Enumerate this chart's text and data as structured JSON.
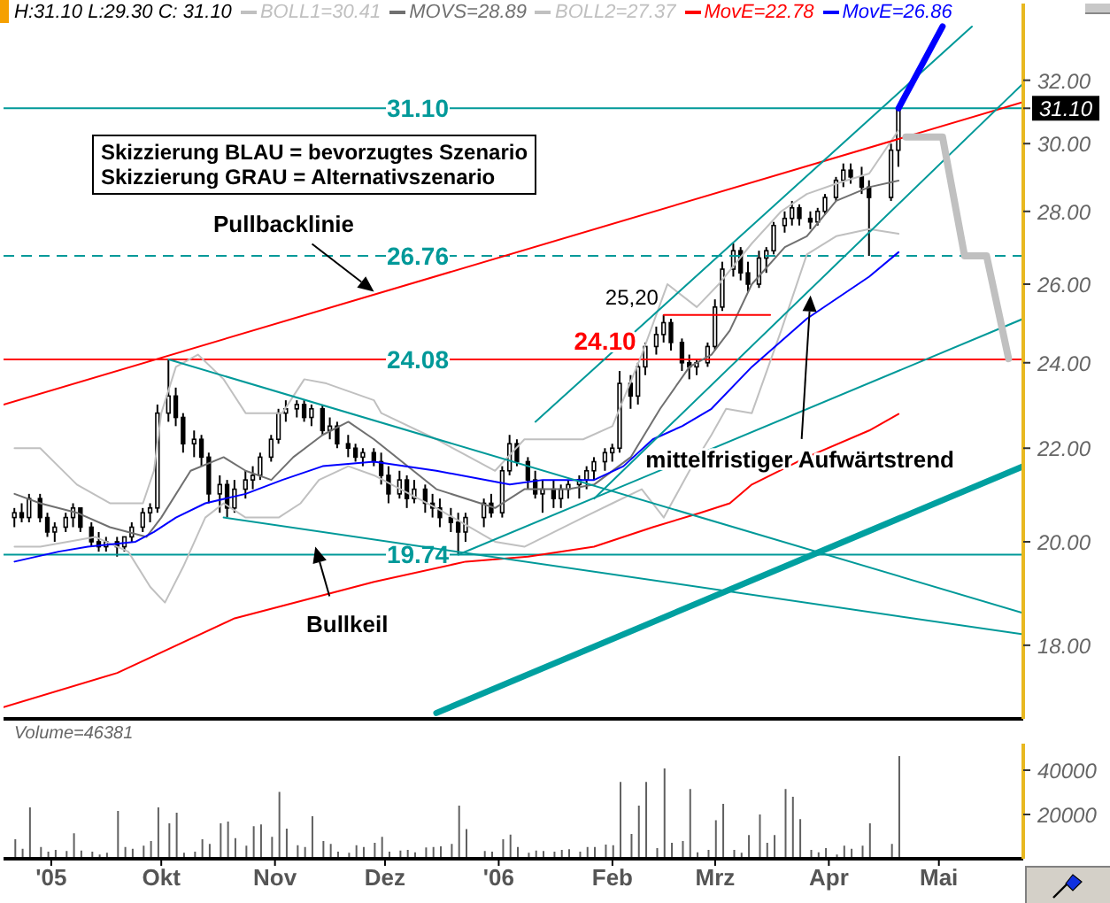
{
  "chart_data": [
    {
      "type": "candlestick",
      "title": "H:31.10 L:29.30 C: 31.10",
      "color": "#000000",
      "x": [
        "2005-08-22",
        "2005-08-24",
        "2005-08-26",
        "2005-08-29",
        "2005-08-31",
        "2005-09-02",
        "2005-09-05",
        "2005-09-07",
        "2005-09-09",
        "2005-09-12",
        "2005-09-14",
        "2005-09-16",
        "2005-09-19",
        "2005-09-21",
        "2005-09-23",
        "2005-09-26",
        "2005-09-28",
        "2005-09-30",
        "2005-10-03",
        "2005-10-05",
        "2005-10-07",
        "2005-10-10",
        "2005-10-12",
        "2005-10-14",
        "2005-10-17",
        "2005-10-19",
        "2005-10-21",
        "2005-10-24",
        "2005-10-26",
        "2005-10-28",
        "2005-10-31",
        "2005-11-02",
        "2005-11-04",
        "2005-11-07",
        "2005-11-09",
        "2005-11-11",
        "2005-11-14",
        "2005-11-16",
        "2005-11-18",
        "2005-11-21",
        "2005-11-23",
        "2005-11-25",
        "2005-11-28",
        "2005-11-30",
        "2005-12-02",
        "2005-12-05",
        "2005-12-07",
        "2005-12-09",
        "2005-12-12",
        "2005-12-14",
        "2005-12-16",
        "2005-12-19",
        "2005-12-21",
        "2005-12-23",
        "2005-12-28",
        "2005-12-30",
        "2006-01-02",
        "2006-01-04",
        "2006-01-06",
        "2006-01-09",
        "2006-01-11",
        "2006-01-13",
        "2006-01-16",
        "2006-01-18",
        "2006-01-20",
        "2006-01-23",
        "2006-01-25",
        "2006-01-27",
        "2006-01-30",
        "2006-02-01",
        "2006-02-03",
        "2006-02-06",
        "2006-02-08",
        "2006-02-10",
        "2006-02-13",
        "2006-02-15",
        "2006-02-17",
        "2006-02-20",
        "2006-02-22",
        "2006-02-24",
        "2006-02-27",
        "2006-03-01",
        "2006-03-03",
        "2006-03-06",
        "2006-03-08",
        "2006-03-10",
        "2006-03-13",
        "2006-03-15",
        "2006-03-17",
        "2006-03-20",
        "2006-03-22",
        "2006-03-24",
        "2006-03-27",
        "2006-03-29",
        "2006-03-31",
        "2006-04-03",
        "2006-04-05",
        "2006-04-07",
        "2006-04-10",
        "2006-04-12",
        "2006-04-18",
        "2006-04-20"
      ],
      "ohlc": [
        [
          20.5,
          20.7,
          20.3,
          20.6
        ],
        [
          20.6,
          20.8,
          20.4,
          20.5
        ],
        [
          20.5,
          21.0,
          20.4,
          20.9
        ],
        [
          20.9,
          21.0,
          20.4,
          20.5
        ],
        [
          20.5,
          20.6,
          20.1,
          20.2
        ],
        [
          20.2,
          20.4,
          20.0,
          20.3
        ],
        [
          20.3,
          20.6,
          20.2,
          20.5
        ],
        [
          20.5,
          20.8,
          20.3,
          20.7
        ],
        [
          20.7,
          20.7,
          20.2,
          20.3
        ],
        [
          20.3,
          20.4,
          19.9,
          20.0
        ],
        [
          20.0,
          20.2,
          19.8,
          19.9
        ],
        [
          19.9,
          20.1,
          19.8,
          20.0
        ],
        [
          20.0,
          20.1,
          19.7,
          19.9
        ],
        [
          19.9,
          20.1,
          19.8,
          20.1
        ],
        [
          20.1,
          20.4,
          20.0,
          20.3
        ],
        [
          20.3,
          20.7,
          20.2,
          20.6
        ],
        [
          20.6,
          20.8,
          20.4,
          20.7
        ],
        [
          20.7,
          23.0,
          20.6,
          22.8
        ],
        [
          22.8,
          24.08,
          22.6,
          23.2
        ],
        [
          23.2,
          23.4,
          22.5,
          22.7
        ],
        [
          22.7,
          22.8,
          21.9,
          22.1
        ],
        [
          22.1,
          22.4,
          21.8,
          22.2
        ],
        [
          22.2,
          22.3,
          21.6,
          21.8
        ],
        [
          21.8,
          21.9,
          20.8,
          21.0
        ],
        [
          21.0,
          21.4,
          20.6,
          21.2
        ],
        [
          21.2,
          21.3,
          20.5,
          20.7
        ],
        [
          20.7,
          21.3,
          20.6,
          21.1
        ],
        [
          21.1,
          21.5,
          20.9,
          21.3
        ],
        [
          21.3,
          21.6,
          21.1,
          21.4
        ],
        [
          21.4,
          21.9,
          21.3,
          21.8
        ],
        [
          21.8,
          22.3,
          21.7,
          22.2
        ],
        [
          22.2,
          22.9,
          22.1,
          22.8
        ],
        [
          22.8,
          23.1,
          22.6,
          22.9
        ],
        [
          22.9,
          23.1,
          22.7,
          23.0
        ],
        [
          23.0,
          23.1,
          22.6,
          22.7
        ],
        [
          22.7,
          23.0,
          22.5,
          22.9
        ],
        [
          22.9,
          23.0,
          22.3,
          22.4
        ],
        [
          22.4,
          22.7,
          22.2,
          22.5
        ],
        [
          22.5,
          22.6,
          22.0,
          22.1
        ],
        [
          22.1,
          22.3,
          21.8,
          22.0
        ],
        [
          22.0,
          22.1,
          21.7,
          21.8
        ],
        [
          21.8,
          22.0,
          21.6,
          21.9
        ],
        [
          21.9,
          22.0,
          21.6,
          21.7
        ],
        [
          21.7,
          21.9,
          21.2,
          21.4
        ],
        [
          21.4,
          21.6,
          20.8,
          21.0
        ],
        [
          21.0,
          21.5,
          20.9,
          21.3
        ],
        [
          21.3,
          21.4,
          20.7,
          20.9
        ],
        [
          20.9,
          21.3,
          20.8,
          21.1
        ],
        [
          21.1,
          21.2,
          20.6,
          20.8
        ],
        [
          20.8,
          21.0,
          20.5,
          20.7
        ],
        [
          20.7,
          20.9,
          20.3,
          20.5
        ],
        [
          20.5,
          20.7,
          20.2,
          20.4
        ],
        [
          20.4,
          20.6,
          19.74,
          20.2
        ],
        [
          20.2,
          20.6,
          20.0,
          20.5
        ],
        [
          20.5,
          20.9,
          20.3,
          20.8
        ],
        [
          20.8,
          21.0,
          20.5,
          20.6
        ],
        [
          20.6,
          21.6,
          20.5,
          21.5
        ],
        [
          21.5,
          22.3,
          21.4,
          22.1
        ],
        [
          22.1,
          22.2,
          21.6,
          21.7
        ],
        [
          21.7,
          21.8,
          21.1,
          21.3
        ],
        [
          21.3,
          21.5,
          20.9,
          21.0
        ],
        [
          21.0,
          21.3,
          20.6,
          21.1
        ],
        [
          21.1,
          21.3,
          20.7,
          20.9
        ],
        [
          20.9,
          21.2,
          20.7,
          21.1
        ],
        [
          21.1,
          21.3,
          20.9,
          21.2
        ],
        [
          21.2,
          21.4,
          20.9,
          21.3
        ],
        [
          21.3,
          21.6,
          21.1,
          21.5
        ],
        [
          21.5,
          21.8,
          21.3,
          21.7
        ],
        [
          21.7,
          22.0,
          21.5,
          21.9
        ],
        [
          21.9,
          22.1,
          21.7,
          22.0
        ],
        [
          22.0,
          23.8,
          21.9,
          23.5
        ],
        [
          23.5,
          23.7,
          22.9,
          23.2
        ],
        [
          23.2,
          24.0,
          23.0,
          23.9
        ],
        [
          23.9,
          24.5,
          23.7,
          24.4
        ],
        [
          24.4,
          24.9,
          24.2,
          24.7
        ],
        [
          24.7,
          25.2,
          24.5,
          25.0
        ],
        [
          25.0,
          25.1,
          24.3,
          24.5
        ],
        [
          24.5,
          24.6,
          23.8,
          24.0
        ],
        [
          24.0,
          24.2,
          23.6,
          23.9
        ],
        [
          23.9,
          24.1,
          23.7,
          24.0
        ],
        [
          24.0,
          24.5,
          23.9,
          24.4
        ],
        [
          24.4,
          25.6,
          24.3,
          25.4
        ],
        [
          25.4,
          26.6,
          25.3,
          26.4
        ],
        [
          26.4,
          27.1,
          26.2,
          26.9
        ],
        [
          26.9,
          27.0,
          26.1,
          26.3
        ],
        [
          26.3,
          26.6,
          25.8,
          26.0
        ],
        [
          26.0,
          26.9,
          25.9,
          26.7
        ],
        [
          26.7,
          27.0,
          26.3,
          26.9
        ],
        [
          26.9,
          27.7,
          26.8,
          27.6
        ],
        [
          27.6,
          28.0,
          27.4,
          27.8
        ],
        [
          27.8,
          28.3,
          27.6,
          28.1
        ],
        [
          28.1,
          28.2,
          27.6,
          27.8
        ],
        [
          27.8,
          28.0,
          27.5,
          27.7
        ],
        [
          27.7,
          28.1,
          27.6,
          28.0
        ],
        [
          28.0,
          28.5,
          27.9,
          28.4
        ],
        [
          28.4,
          29.0,
          28.3,
          28.9
        ],
        [
          28.9,
          29.4,
          28.7,
          29.2
        ],
        [
          29.2,
          29.4,
          28.8,
          29.0
        ],
        [
          29.0,
          29.3,
          28.5,
          28.7
        ],
        [
          28.7,
          28.9,
          26.76,
          28.4
        ],
        [
          28.4,
          30.0,
          28.3,
          29.8
        ],
        [
          29.8,
          31.1,
          29.3,
          31.1
        ]
      ],
      "series": [
        {
          "name": "BOLL1=30.41",
          "type": "line",
          "color": "#c0c0c0",
          "x": [
            "2005-08-22",
            "2005-08-29",
            "2005-09-08",
            "2005-09-17",
            "2005-09-26",
            "2005-09-29",
            "2005-10-01",
            "2005-10-05",
            "2005-10-11",
            "2005-10-18",
            "2005-10-24",
            "2005-11-03",
            "2005-11-09",
            "2005-11-15",
            "2005-11-28",
            "2005-11-30",
            "2005-12-15",
            "2005-12-31",
            "2006-01-08",
            "2006-01-24",
            "2006-02-01",
            "2006-02-09",
            "2006-02-16",
            "2006-02-24",
            "2006-03-02",
            "2006-03-11",
            "2006-03-19",
            "2006-03-26",
            "2006-04-03",
            "2006-04-12",
            "2006-04-20"
          ],
          "values": [
            22.0,
            22.0,
            21.2,
            20.8,
            20.8,
            21.5,
            22.8,
            23.9,
            24.2,
            23.6,
            22.8,
            22.8,
            23.6,
            23.5,
            23.1,
            22.8,
            22.2,
            21.5,
            22.2,
            22.2,
            22.5,
            24.2,
            26.0,
            25.4,
            26.0,
            27.1,
            28.0,
            28.5,
            28.8,
            29.1,
            30.41
          ]
        },
        {
          "name": "MOVS=28.89",
          "type": "line",
          "color": "#707070",
          "x": [
            "2005-08-22",
            "2005-08-29",
            "2005-09-08",
            "2005-09-17",
            "2005-09-27",
            "2005-10-01",
            "2005-10-09",
            "2005-10-18",
            "2005-10-24",
            "2005-10-31",
            "2005-11-06",
            "2005-11-14",
            "2005-11-21",
            "2005-11-28",
            "2005-12-15",
            "2005-12-31",
            "2006-01-08",
            "2006-01-20",
            "2006-01-27",
            "2006-02-06",
            "2006-02-14",
            "2006-02-22",
            "2006-02-28",
            "2006-03-05",
            "2006-03-11",
            "2006-03-20",
            "2006-03-26",
            "2006-04-03",
            "2006-04-12",
            "2006-04-20"
          ],
          "values": [
            21.0,
            20.8,
            20.6,
            20.3,
            20.1,
            20.5,
            21.5,
            21.8,
            21.5,
            21.3,
            21.8,
            22.3,
            22.6,
            22.2,
            21.1,
            20.7,
            21.1,
            21.1,
            21.2,
            21.8,
            22.9,
            23.9,
            24.2,
            24.8,
            26.0,
            27.0,
            27.3,
            28.3,
            28.7,
            28.89
          ]
        },
        {
          "name": "BOLL2=27.37",
          "type": "line",
          "color": "#c0c0c0",
          "x": [
            "2005-08-22",
            "2005-08-29",
            "2005-09-13",
            "2005-09-22",
            "2005-09-28",
            "2005-10-02",
            "2005-10-07",
            "2005-10-13",
            "2005-10-18",
            "2005-10-24",
            "2005-11-02",
            "2005-11-08",
            "2005-11-13",
            "2005-11-21",
            "2005-11-28",
            "2005-12-15",
            "2005-12-31",
            "2006-01-08",
            "2006-01-24",
            "2006-02-01",
            "2006-02-09",
            "2006-02-15",
            "2006-02-22",
            "2006-02-28",
            "2006-03-04",
            "2006-03-11",
            "2006-03-19",
            "2006-03-26",
            "2006-04-03",
            "2006-04-12",
            "2006-04-20"
          ],
          "values": [
            19.9,
            19.9,
            20.1,
            19.8,
            19.1,
            18.8,
            19.5,
            20.5,
            20.8,
            20.5,
            20.5,
            20.8,
            21.3,
            21.6,
            21.4,
            20.7,
            20.0,
            19.9,
            20.5,
            20.8,
            21.1,
            20.5,
            21.5,
            22.3,
            22.9,
            22.8,
            24.8,
            26.8,
            27.3,
            27.5,
            27.37
          ]
        },
        {
          "name": "MovE=22.78",
          "type": "line",
          "color": "#ff0000",
          "x": [
            "2005-08-19",
            "2005-09-19",
            "2005-10-21",
            "2005-11-28",
            "2005-12-23",
            "2006-01-09",
            "2006-01-27",
            "2006-02-12",
            "2006-02-25",
            "2006-03-05",
            "2006-03-11",
            "2006-03-26",
            "2006-04-12",
            "2006-04-20"
          ],
          "values": [
            16.9,
            17.5,
            18.5,
            19.2,
            19.6,
            19.7,
            19.9,
            20.3,
            20.6,
            20.8,
            21.2,
            21.8,
            22.4,
            22.78
          ]
        },
        {
          "name": "MovE=26.86",
          "type": "line",
          "color": "#0000ff",
          "x": [
            "2005-08-22",
            "2005-09-03",
            "2005-09-11",
            "2005-09-24",
            "2005-09-29",
            "2005-10-05",
            "2005-10-13",
            "2005-10-24",
            "2005-11-03",
            "2005-11-14",
            "2005-11-28",
            "2005-12-15",
            "2006-01-04",
            "2006-01-13",
            "2006-01-27",
            "2006-02-04",
            "2006-02-12",
            "2006-02-20",
            "2006-02-28",
            "2006-03-11",
            "2006-03-26",
            "2006-04-12",
            "2006-04-20"
          ],
          "values": [
            19.6,
            19.8,
            19.9,
            20.0,
            20.2,
            20.5,
            20.8,
            21.0,
            21.3,
            21.6,
            21.7,
            21.5,
            21.2,
            21.3,
            21.3,
            21.6,
            22.2,
            22.5,
            22.9,
            23.9,
            25.1,
            26.2,
            26.86
          ]
        },
        {
          "type": "line",
          "color": "#ff0000",
          "x": [
            "2005-08-19",
            "2006-05-24"
          ],
          "values": [
            23.0,
            31.3
          ]
        },
        {
          "type": "line",
          "color": "#009999",
          "x": [
            "2005-10-03",
            "2006-05-24"
          ],
          "values": [
            24.08,
            18.6
          ]
        },
        {
          "type": "line",
          "color": "#009999",
          "x": [
            "2005-10-18",
            "2006-05-24"
          ],
          "values": [
            20.5,
            18.2
          ]
        },
        {
          "type": "line",
          "color": "#009999",
          "x": [
            "2006-01-11",
            "2006-05-10"
          ],
          "values": [
            22.6,
            33.8
          ]
        },
        {
          "type": "line",
          "color": "#009999",
          "x": [
            "2006-01-27",
            "2006-05-24"
          ],
          "values": [
            20.9,
            31.9
          ]
        },
        {
          "type": "line",
          "color": "#009999",
          "x": [
            "2005-12-21",
            "2006-05-24"
          ],
          "values": [
            19.74,
            25.1
          ]
        },
        {
          "type": "line",
          "color": "#00a0a0",
          "x": [
            "2005-12-15",
            "2006-05-24"
          ],
          "values": [
            16.8,
            21.6
          ]
        },
        {
          "type": "line",
          "color": "#ff0000",
          "x": [
            "2006-02-15",
            "2006-03-16"
          ],
          "values": [
            25.2,
            25.2
          ]
        },
        {
          "type": "line",
          "color": "#0000ff",
          "x": [
            "2006-04-20",
            "2006-05-02"
          ],
          "values": [
            31.1,
            33.8
          ]
        },
        {
          "type": "line",
          "color": "#c0c0c0",
          "x": [
            "2006-04-22",
            "2006-05-02",
            "2006-05-08",
            "2006-05-14",
            "2006-05-20"
          ],
          "values": [
            30.2,
            30.2,
            26.76,
            26.76,
            24.1
          ]
        }
      ],
      "xlim": [
        "2005-08-19",
        "2006-05-24"
      ],
      "ylim": [
        16.7,
        34.6
      ],
      "yticks": [
        {
          "value": 18,
          "label": "18.00"
        },
        {
          "value": 20,
          "label": "20.00"
        },
        {
          "value": 22,
          "label": "22.00"
        },
        {
          "value": 24,
          "label": "24.00"
        },
        {
          "value": 26,
          "label": "26.00"
        },
        {
          "value": 28,
          "label": "28.00"
        },
        {
          "value": 30,
          "label": "30.00"
        },
        {
          "value": 32,
          "label": "32.00"
        },
        {
          "value": 31.1,
          "label": "31.10"
        }
      ],
      "log": "y",
      "tick_labels": "y",
      "legend": "top",
      "ref_lines": [
        {
          "axis": "y",
          "value": 31.1,
          "label": "31.10",
          "color": "#009999"
        },
        {
          "axis": "y",
          "value": 26.76,
          "label": "26.76",
          "color": "#009999",
          "line_style": "dashed"
        },
        {
          "axis": "y",
          "value": 24.08,
          "label": "24.08",
          "color": "#ff0000"
        },
        {
          "axis": "y",
          "value": 19.74,
          "label": "19.74",
          "color": "#009999"
        }
      ],
      "annotations": [
        "Skizzierung BLAU = bevorzugtes Szenario",
        "Skizzierung GRAU = Alternativszenario",
        {
          "text": "Pullbacklinie",
          "x": "2005-11-28",
          "y": 25.8
        },
        {
          "text": "Bullkeil",
          "x": "2005-11-12",
          "y": 19.9
        },
        {
          "text": "mittelfristiger Aufwärtstrend",
          "x": "2006-03-27",
          "y": 25.7
        },
        {
          "text": "25,20",
          "x": "2006-02-15",
          "y": 25.2
        },
        {
          "text": "24.10",
          "x": "2006-01-30",
          "y": 24.1
        }
      ]
    },
    {
      "type": "bar",
      "title": "Volume=46381",
      "color": "#606060",
      "x": [
        "2005-08-22",
        "2005-08-24",
        "2005-08-26",
        "2005-08-29",
        "2005-08-31",
        "2005-09-02",
        "2005-09-05",
        "2005-09-07",
        "2005-09-09",
        "2005-09-12",
        "2005-09-14",
        "2005-09-16",
        "2005-09-19",
        "2005-09-21",
        "2005-09-23",
        "2005-09-26",
        "2005-09-28",
        "2005-09-30",
        "2005-10-03",
        "2005-10-05",
        "2005-10-07",
        "2005-10-10",
        "2005-10-12",
        "2005-10-14",
        "2005-10-17",
        "2005-10-19",
        "2005-10-21",
        "2005-10-24",
        "2005-10-26",
        "2005-10-28",
        "2005-10-31",
        "2005-11-02",
        "2005-11-04",
        "2005-11-07",
        "2005-11-09",
        "2005-11-11",
        "2005-11-14",
        "2005-11-16",
        "2005-11-18",
        "2005-11-21",
        "2005-11-23",
        "2005-11-25",
        "2005-11-28",
        "2005-11-30",
        "2005-12-02",
        "2005-12-05",
        "2005-12-07",
        "2005-12-09",
        "2005-12-12",
        "2005-12-14",
        "2005-12-16",
        "2005-12-19",
        "2005-12-21",
        "2005-12-23",
        "2005-12-28",
        "2005-12-30",
        "2006-01-02",
        "2006-01-04",
        "2006-01-06",
        "2006-01-09",
        "2006-01-11",
        "2006-01-13",
        "2006-01-16",
        "2006-01-18",
        "2006-01-20",
        "2006-01-23",
        "2006-01-25",
        "2006-01-27",
        "2006-01-30",
        "2006-02-01",
        "2006-02-03",
        "2006-02-06",
        "2006-02-08",
        "2006-02-10",
        "2006-02-13",
        "2006-02-15",
        "2006-02-17",
        "2006-02-20",
        "2006-02-22",
        "2006-02-24",
        "2006-02-27",
        "2006-03-01",
        "2006-03-03",
        "2006-03-06",
        "2006-03-08",
        "2006-03-10",
        "2006-03-13",
        "2006-03-15",
        "2006-03-17",
        "2006-03-20",
        "2006-03-22",
        "2006-03-24",
        "2006-03-27",
        "2006-03-29",
        "2006-03-31",
        "2006-04-03",
        "2006-04-05",
        "2006-04-07",
        "2006-04-10",
        "2006-04-12",
        "2006-04-18",
        "2006-04-20"
      ],
      "values": [
        8800,
        4500,
        23200,
        5300,
        3200,
        4000,
        3500,
        11500,
        3700,
        3200,
        1900,
        2700,
        21600,
        5300,
        4500,
        5900,
        8000,
        23200,
        16000,
        20800,
        2700,
        3200,
        8800,
        6700,
        16000,
        16800,
        9300,
        5900,
        14700,
        15500,
        9900,
        30200,
        13600,
        6100,
        5300,
        19200,
        8000,
        6700,
        3200,
        2700,
        6100,
        5300,
        7200,
        9900,
        3200,
        3700,
        4000,
        2900,
        5100,
        5300,
        5600,
        6700,
        24000,
        13400,
        3500,
        3200,
        8800,
        10900,
        5300,
        2700,
        3700,
        3500,
        3200,
        4000,
        4300,
        3200,
        5300,
        5300,
        6400,
        6100,
        34700,
        11200,
        24000,
        34700,
        4800,
        40800,
        7200,
        8000,
        31500,
        2900,
        4000,
        17400,
        24800,
        4000,
        2700,
        10700,
        20000,
        7200,
        10700,
        31500,
        28000,
        17900,
        4000,
        2900,
        4800,
        1900,
        5900,
        4500,
        5900,
        16000,
        6700,
        46381
      ],
      "xlim": [
        "2005-08-19",
        "2006-05-24"
      ],
      "xticks": [
        {
          "value": "2005-09-01",
          "label": "'05"
        },
        {
          "value": "2005-10-01",
          "label": "Okt"
        },
        {
          "value": "2005-11-01",
          "label": "Nov"
        },
        {
          "value": "2005-12-01",
          "label": "Dez"
        },
        {
          "value": "2006-01-01",
          "label": "'06"
        },
        {
          "value": "2006-02-01",
          "label": "Feb"
        },
        {
          "value": "2006-03-01",
          "label": "Mrz"
        },
        {
          "value": "2006-04-01",
          "label": "Apr"
        },
        {
          "value": "2006-05-01",
          "label": "Mai"
        }
      ],
      "ylim": [
        0,
        52000
      ],
      "yticks": [
        20000,
        40000
      ]
    }
  ]
}
